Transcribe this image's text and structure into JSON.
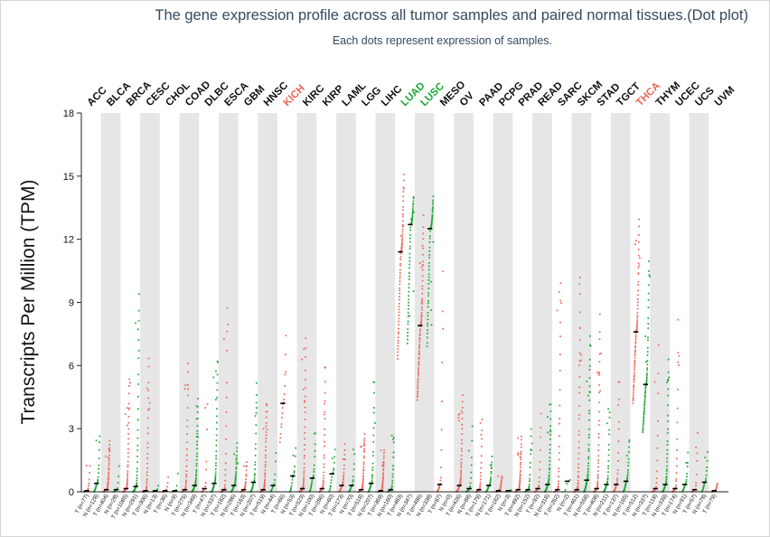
{
  "header": {
    "title": "The gene expression profile across all tumor samples and paired normal tissues.(Dot plot)",
    "subtitle": "Each dots represent expression of samples."
  },
  "colors": {
    "tumor": "#f0645a",
    "normal": "#1aa832",
    "highlight_up": "#f0645a",
    "highlight_down": "#1aa832",
    "band": "#e6e6e6",
    "median": "#000000"
  },
  "chart_data": {
    "type": "scatter",
    "title": "The gene expression profile across all tumor samples and paired normal tissues.(Dot plot)",
    "subtitle": "Each dots represent expression of samples.",
    "ylabel": "Transcripts Per Million (TPM)",
    "ylim": [
      0,
      18
    ],
    "yticks": [
      0,
      3,
      6,
      9,
      12,
      15,
      18
    ],
    "grid": false,
    "cancers": [
      {
        "name": "ACC",
        "highlight": "none",
        "groups": [
          {
            "label": "T (n=77)",
            "median": 0.05,
            "max": 1.4
          },
          {
            "label": "N (n=128)",
            "median": 0.4,
            "max": 3.1
          }
        ]
      },
      {
        "name": "BLCA",
        "highlight": "none",
        "groups": [
          {
            "label": "T (n=404)",
            "median": 0.1,
            "max": 2.5
          },
          {
            "label": "N (n=28)",
            "median": 0.1,
            "max": 1.8
          }
        ]
      },
      {
        "name": "BRCA",
        "highlight": "none",
        "groups": [
          {
            "label": "T (n=1085)",
            "median": 0.15,
            "max": 5.6
          },
          {
            "label": "N (n=291)",
            "median": 0.25,
            "max": 10.3
          }
        ]
      },
      {
        "name": "CESC",
        "highlight": "none",
        "groups": [
          {
            "label": "T (n=306)",
            "median": 0.05,
            "max": 6.9
          },
          {
            "label": "N (n=13)",
            "median": 0.05,
            "max": 0.4
          }
        ]
      },
      {
        "name": "CHOL",
        "highlight": "none",
        "groups": [
          {
            "label": "T (n=36)",
            "median": 0.05,
            "max": 0.9
          },
          {
            "label": "N (n=9)",
            "median": 0.05,
            "max": 1.2
          }
        ]
      },
      {
        "name": "COAD",
        "highlight": "none",
        "groups": [
          {
            "label": "T (n=275)",
            "median": 0.1,
            "max": 6.6
          },
          {
            "label": "N (n=349)",
            "median": 0.3,
            "max": 4.7
          }
        ]
      },
      {
        "name": "DLBC",
        "highlight": "none",
        "groups": [
          {
            "label": "T (n=47)",
            "median": 0.15,
            "max": 5.5
          },
          {
            "label": "N (n=337)",
            "median": 0.4,
            "max": 6.5
          }
        ]
      },
      {
        "name": "ESCA",
        "highlight": "none",
        "groups": [
          {
            "label": "T (n=182)",
            "median": 0.1,
            "max": 9.7
          },
          {
            "label": "N (n=286)",
            "median": 0.3,
            "max": 2.4
          }
        ]
      },
      {
        "name": "GBM",
        "highlight": "none",
        "groups": [
          {
            "label": "T (n=163)",
            "median": 0.1,
            "max": 1.6
          },
          {
            "label": "N (n=207)",
            "median": 0.45,
            "max": 5.8
          }
        ]
      },
      {
        "name": "HNSC",
        "highlight": "none",
        "groups": [
          {
            "label": "T (n=519)",
            "median": 0.1,
            "max": 4.4
          },
          {
            "label": "N (n=44)",
            "median": 0.3,
            "max": 2.5
          }
        ]
      },
      {
        "name": "KICH",
        "highlight": "up",
        "groups": [
          {
            "label": "T (n=66)",
            "median": 4.2,
            "max": 8.3
          },
          {
            "label": "N (n=53)",
            "median": 0.75,
            "max": 2.4
          }
        ]
      },
      {
        "name": "KIRC",
        "highlight": "none",
        "groups": [
          {
            "label": "T (n=523)",
            "median": 0.15,
            "max": 7.7
          },
          {
            "label": "N (n=100)",
            "median": 0.65,
            "max": 3.2
          }
        ]
      },
      {
        "name": "KIRP",
        "highlight": "none",
        "groups": [
          {
            "label": "T (n=286)",
            "median": 0.15,
            "max": 6.3
          },
          {
            "label": "N (n=60)",
            "median": 0.85,
            "max": 2.2
          }
        ]
      },
      {
        "name": "LAML",
        "highlight": "none",
        "groups": [
          {
            "label": "T (n=173)",
            "median": 0.3,
            "max": 2.5
          },
          {
            "label": "N (n=70)",
            "median": 0.3,
            "max": 2.2
          }
        ]
      },
      {
        "name": "LGG",
        "highlight": "none",
        "groups": [
          {
            "label": "T (n=518)",
            "median": 0.1,
            "max": 2.9
          },
          {
            "label": "N (n=207)",
            "median": 0.4,
            "max": 5.8
          }
        ]
      },
      {
        "name": "LIHC",
        "highlight": "none",
        "groups": [
          {
            "label": "T (n=369)",
            "median": 0.05,
            "max": 2.1
          },
          {
            "label": "N (n=160)",
            "median": 0.1,
            "max": 3.0
          }
        ]
      },
      {
        "name": "LUAD",
        "highlight": "down",
        "groups": [
          {
            "label": "T (n=483)",
            "median": 11.4,
            "max": 15.2
          },
          {
            "label": "N (n=347)",
            "median": 12.7,
            "max": 14.1
          }
        ]
      },
      {
        "name": "LUSC",
        "highlight": "down",
        "groups": [
          {
            "label": "T (n=486)",
            "median": 7.9,
            "max": 13.3
          },
          {
            "label": "N (n=338)",
            "median": 12.5,
            "max": 14.1
          }
        ]
      },
      {
        "name": "MESO",
        "highlight": "none",
        "groups": [
          {
            "label": "T (n=87)",
            "median": 0.35,
            "max": 12.9
          },
          {
            "label": "N (n=0)",
            "median": 0.0,
            "max": 0.0
          }
        ]
      },
      {
        "name": "OV",
        "highlight": "none",
        "groups": [
          {
            "label": "T (n=426)",
            "median": 0.3,
            "max": 4.9
          },
          {
            "label": "N (n=88)",
            "median": 0.15,
            "max": 3.5
          }
        ]
      },
      {
        "name": "PAAD",
        "highlight": "none",
        "groups": [
          {
            "label": "T (n=179)",
            "median": 0.1,
            "max": 3.7
          },
          {
            "label": "N (n=171)",
            "median": 0.3,
            "max": 1.8
          }
        ]
      },
      {
        "name": "PCPG",
        "highlight": "none",
        "groups": [
          {
            "label": "T (n=182)",
            "median": 0.05,
            "max": 0.8
          },
          {
            "label": "N (n=3)",
            "median": 0.05,
            "max": 0.1
          }
        ]
      },
      {
        "name": "PRAD",
        "highlight": "none",
        "groups": [
          {
            "label": "T (n=492)",
            "median": 0.1,
            "max": 2.8
          },
          {
            "label": "N (n=152)",
            "median": 0.1,
            "max": 3.4
          }
        ]
      },
      {
        "name": "READ",
        "highlight": "none",
        "groups": [
          {
            "label": "T (n=92)",
            "median": 0.15,
            "max": 4.3
          },
          {
            "label": "N (n=318)",
            "median": 0.35,
            "max": 4.4
          }
        ]
      },
      {
        "name": "SARC",
        "highlight": "none",
        "groups": [
          {
            "label": "T (n=262)",
            "median": 0.1,
            "max": 10.8
          },
          {
            "label": "N (n=2)",
            "median": 0.5,
            "max": 0.6
          }
        ]
      },
      {
        "name": "SKCM",
        "highlight": "none",
        "groups": [
          {
            "label": "T (n=461)",
            "median": 0.1,
            "max": 10.6
          },
          {
            "label": "N (n=558)",
            "median": 0.55,
            "max": 7.7
          }
        ]
      },
      {
        "name": "STAD",
        "highlight": "none",
        "groups": [
          {
            "label": "T (n=408)",
            "median": 0.15,
            "max": 8.7
          },
          {
            "label": "N (n=211)",
            "median": 0.35,
            "max": 4.2
          }
        ]
      },
      {
        "name": "TGCT",
        "highlight": "none",
        "groups": [
          {
            "label": "T (n=137)",
            "median": 0.35,
            "max": 5.7
          },
          {
            "label": "N (n=165)",
            "median": 0.5,
            "max": 2.6
          }
        ]
      },
      {
        "name": "THCA",
        "highlight": "up",
        "groups": [
          {
            "label": "T (n=512)",
            "median": 7.6,
            "max": 13.3
          },
          {
            "label": "N (n=337)",
            "median": 5.1,
            "max": 11.2
          }
        ]
      },
      {
        "name": "THYM",
        "highlight": "none",
        "groups": [
          {
            "label": "T (n=118)",
            "median": 0.15,
            "max": 8.0
          },
          {
            "label": "N (n=339)",
            "median": 0.35,
            "max": 6.6
          }
        ]
      },
      {
        "name": "UCEC",
        "highlight": "none",
        "groups": [
          {
            "label": "T (n=174)",
            "median": 0.15,
            "max": 9.0
          },
          {
            "label": "N (n=91)",
            "median": 0.35,
            "max": 2.1
          }
        ]
      },
      {
        "name": "UCS",
        "highlight": "none",
        "groups": [
          {
            "label": "T (n=57)",
            "median": 0.1,
            "max": 3.6
          },
          {
            "label": "N (n=78)",
            "median": 0.45,
            "max": 2.2
          }
        ]
      },
      {
        "name": "UVM",
        "highlight": "none",
        "groups": [
          {
            "label": "T (n=79)",
            "median": 0.05,
            "max": 0.5
          }
        ]
      }
    ]
  }
}
